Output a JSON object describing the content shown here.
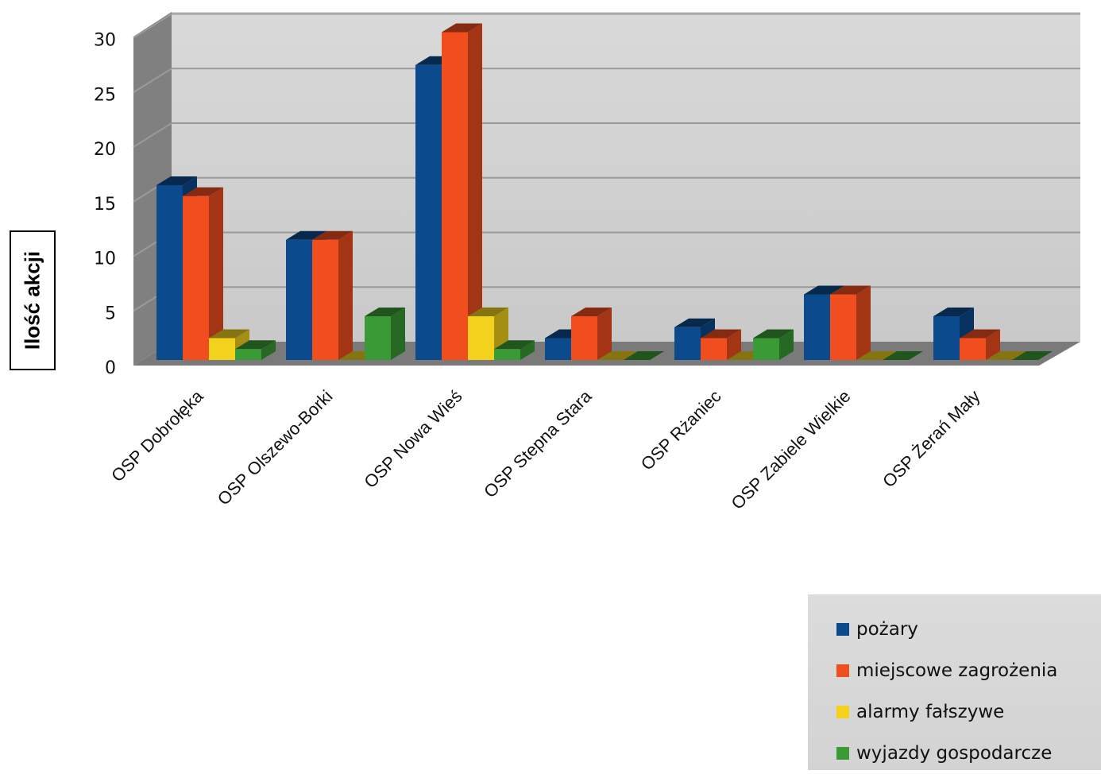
{
  "chart_data": {
    "type": "bar",
    "title": "",
    "xlabel": "",
    "ylabel": "Ilość akcji",
    "ylim": [
      0,
      30
    ],
    "yticks": [
      0,
      5,
      10,
      15,
      20,
      25,
      30
    ],
    "grid": true,
    "legend_position": "bottom-right",
    "categories": [
      "OSP Dobrołęka",
      "OSP Olszewo-Borki",
      "OSP Nowa Wieś",
      "OSP Stepna Stara",
      "OSP Rżaniec",
      "OSP Zabiele Wielkie",
      "OSP Żerań Mały"
    ],
    "series": [
      {
        "name": "pożary",
        "color": "#0b4a8c",
        "values": [
          16,
          11,
          27,
          2,
          3,
          6,
          4
        ]
      },
      {
        "name": "miejscowe zagrożenia",
        "color": "#f04e1e",
        "values": [
          15,
          11,
          30,
          4,
          2,
          6,
          2
        ]
      },
      {
        "name": "alarmy fałszywe",
        "color": "#f2d21c",
        "values": [
          2,
          0,
          4,
          0,
          0,
          0,
          0
        ]
      },
      {
        "name": "wyjazdy gospodarcze",
        "color": "#3a9a35",
        "values": [
          1,
          4,
          1,
          0,
          2,
          0,
          0
        ]
      }
    ]
  }
}
